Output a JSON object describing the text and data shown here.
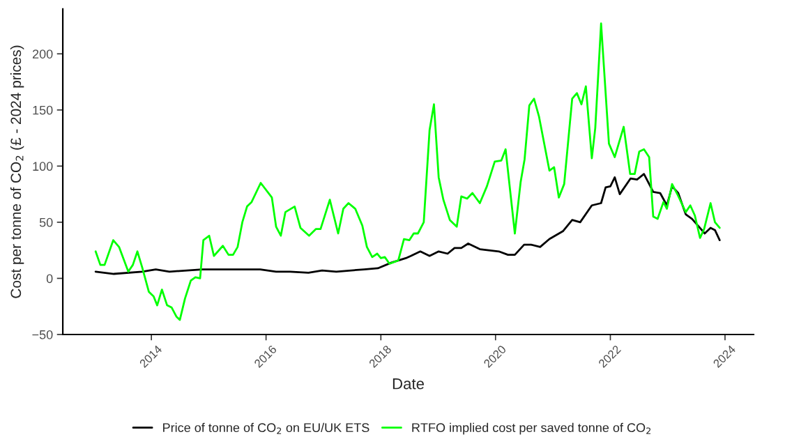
{
  "chart_data": {
    "type": "line",
    "xlabel": "Date",
    "ylabel": "Cost per tonne of CO$_{2}$ (£ - 2024 prices)",
    "xlim": [
      "2012-06-16",
      "2024-07-01"
    ],
    "xticks": [
      "2014",
      "2016",
      "2018",
      "2020",
      "2022",
      "2024"
    ],
    "ylim": [
      -50,
      240
    ],
    "yticks": [
      -50,
      0,
      50,
      100,
      150,
      200
    ],
    "grid": false,
    "legend": "bottom",
    "marker": "none",
    "line_style": "solid",
    "series": [
      {
        "name": "Price of tonne of CO$_{2}$ on EU/UK ETS",
        "color": "#000000",
        "x": [
          "2013-01-11",
          "2013-05-07",
          "2013-11-03",
          "2014-01-29",
          "2014-04-26",
          "2014-11-21",
          "2015-06-13",
          "2015-11-25",
          "2016-03-05",
          "2016-06-02",
          "2016-09-27",
          "2016-12-23",
          "2017-03-23",
          "2017-09-16",
          "2017-12-13",
          "2018-03-09",
          "2018-06-09",
          "2018-07-11",
          "2018-09-09",
          "2018-11-07",
          "2019-01-04",
          "2019-03-02",
          "2019-04-15",
          "2019-05-28",
          "2019-07-11",
          "2019-09-23",
          "2020-01-22",
          "2020-03-20",
          "2020-05-03",
          "2020-07-01",
          "2020-08-14",
          "2020-10-11",
          "2020-12-09",
          "2021-03-05",
          "2021-05-03",
          "2021-06-23",
          "2021-09-05",
          "2021-11-03",
          "2021-12-02",
          "2022-01-01",
          "2022-01-29",
          "2022-03-02",
          "2022-05-10",
          "2022-06-20",
          "2022-08-03",
          "2022-10-01",
          "2022-11-14",
          "2022-12-27",
          "2023-01-29",
          "2023-03-09",
          "2023-04-26",
          "2023-06-05",
          "2023-07-19",
          "2023-08-25",
          "2023-10-01",
          "2023-10-29",
          "2023-11-28"
        ],
        "values": [
          6,
          4,
          6,
          8,
          6,
          8,
          8,
          8,
          6,
          6,
          5,
          7,
          6,
          8,
          9,
          14,
          18,
          20,
          24,
          20,
          24,
          22,
          27,
          27,
          31,
          26,
          24,
          21,
          21,
          30,
          30,
          28,
          35,
          42,
          52,
          50,
          65,
          67,
          81,
          82,
          90,
          75,
          89,
          88,
          93,
          77,
          76,
          65,
          82,
          76,
          57,
          53,
          46,
          40,
          45,
          43,
          34
        ]
      },
      {
        "name": "RTFO implied cost per saved tonne of CO$_{2}$",
        "color": "#00ff00",
        "x": [
          "2013-01-11",
          "2013-02-10",
          "2013-03-09",
          "2013-05-03",
          "2013-06-09",
          "2013-08-07",
          "2013-09-05",
          "2013-10-04",
          "2013-11-03",
          "2013-12-16",
          "2014-01-15",
          "2014-02-07",
          "2014-03-09",
          "2014-04-11",
          "2014-05-10",
          "2014-06-09",
          "2014-07-01",
          "2014-08-03",
          "2014-09-09",
          "2014-10-08",
          "2014-11-07",
          "2014-11-28",
          "2015-01-04",
          "2015-02-03",
          "2015-04-01",
          "2015-05-07",
          "2015-06-05",
          "2015-07-04",
          "2015-08-03",
          "2015-09-02",
          "2015-10-01",
          "2015-11-28",
          "2016-02-07",
          "2016-03-05",
          "2016-04-04",
          "2016-05-03",
          "2016-07-01",
          "2016-08-07",
          "2016-10-01",
          "2016-11-14",
          "2016-12-13",
          "2017-02-10",
          "2017-04-04",
          "2017-05-07",
          "2017-06-09",
          "2017-07-22",
          "2017-09-05",
          "2017-10-04",
          "2017-11-07",
          "2017-12-09",
          "2018-01-01",
          "2018-01-26",
          "2018-02-25",
          "2018-04-22",
          "2018-05-28",
          "2018-07-01",
          "2018-07-29",
          "2018-08-25",
          "2018-10-01",
          "2018-11-07",
          "2018-12-05",
          "2019-01-04",
          "2019-02-03",
          "2019-03-16",
          "2019-04-29",
          "2019-05-28",
          "2019-07-04",
          "2019-08-07",
          "2019-09-23",
          "2019-11-07",
          "2019-12-27",
          "2020-02-07",
          "2020-03-05",
          "2020-05-03",
          "2020-06-09",
          "2020-07-04",
          "2020-08-03",
          "2020-09-02",
          "2020-10-04",
          "2020-12-09",
          "2021-01-08",
          "2021-02-07",
          "2021-03-13",
          "2021-05-03",
          "2021-06-02",
          "2021-07-01",
          "2021-07-29",
          "2021-09-05",
          "2021-09-27",
          "2021-11-03",
          "2021-12-23",
          "2022-01-29",
          "2022-03-27",
          "2022-05-07",
          "2022-06-05",
          "2022-07-04",
          "2022-08-03",
          "2022-09-05",
          "2022-10-01",
          "2022-10-29",
          "2022-12-05",
          "2022-12-27",
          "2023-01-29",
          "2023-03-07",
          "2023-04-26",
          "2023-05-25",
          "2023-06-23",
          "2023-07-26",
          "2023-08-21",
          "2023-10-01",
          "2023-10-29",
          "2023-11-28"
        ],
        "values": [
          24,
          12,
          12,
          34,
          28,
          6,
          12,
          24,
          10,
          -12,
          -16,
          -24,
          -10,
          -24,
          -26,
          -34,
          -37,
          -18,
          -2,
          1,
          0,
          34,
          38,
          20,
          29,
          21,
          21,
          28,
          50,
          64,
          68,
          85,
          72,
          46,
          38,
          59,
          64,
          45,
          38,
          44,
          44,
          70,
          40,
          62,
          67,
          62,
          47,
          28,
          19,
          22,
          18,
          19,
          13,
          16,
          35,
          34,
          40,
          40,
          50,
          132,
          155,
          90,
          70,
          52,
          46,
          73,
          71,
          76,
          67,
          82,
          104,
          105,
          115,
          40,
          86,
          106,
          154,
          160,
          144,
          96,
          99,
          72,
          84,
          160,
          165,
          155,
          171,
          107,
          134,
          227,
          120,
          108,
          135,
          93,
          93,
          113,
          115,
          108,
          55,
          53,
          68,
          62,
          84,
          74,
          59,
          65,
          56,
          36,
          44,
          67,
          50,
          45
        ]
      }
    ]
  }
}
